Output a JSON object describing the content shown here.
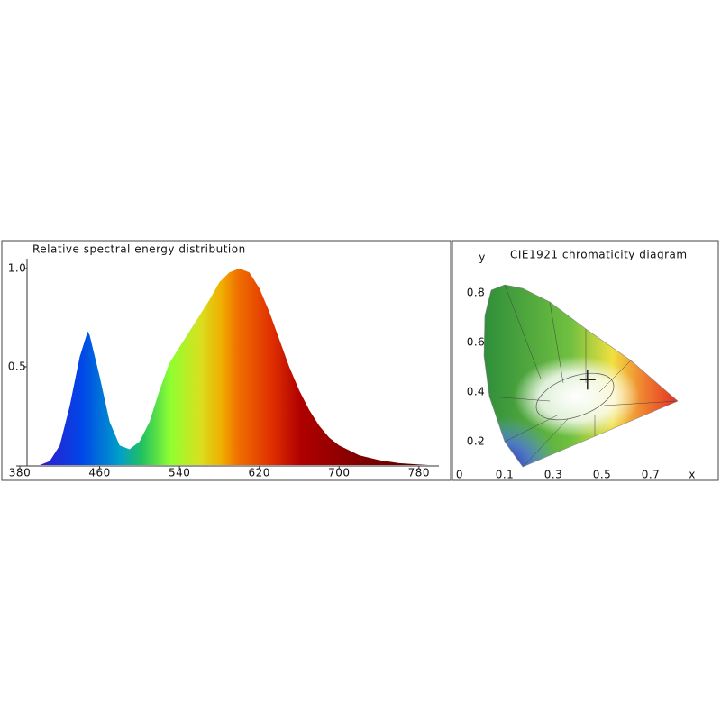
{
  "chart_data": [
    {
      "type": "area",
      "title": "Relative spectral energy distribution",
      "x": [
        400,
        410,
        420,
        430,
        440,
        448,
        450,
        460,
        470,
        480,
        490,
        500,
        510,
        520,
        530,
        540,
        550,
        560,
        570,
        580,
        590,
        600,
        610,
        620,
        630,
        640,
        650,
        660,
        670,
        680,
        690,
        700,
        720,
        740,
        760,
        780,
        790
      ],
      "values": [
        0,
        0.02,
        0.1,
        0.3,
        0.55,
        0.68,
        0.66,
        0.45,
        0.22,
        0.1,
        0.08,
        0.12,
        0.22,
        0.38,
        0.52,
        0.6,
        0.68,
        0.76,
        0.84,
        0.93,
        0.98,
        1.0,
        0.98,
        0.9,
        0.78,
        0.64,
        0.5,
        0.38,
        0.28,
        0.2,
        0.14,
        0.1,
        0.05,
        0.025,
        0.01,
        0.003,
        0
      ],
      "xlim": [
        380,
        800
      ],
      "xticks": [
        380,
        460,
        540,
        620,
        700,
        780
      ],
      "ylim": [
        0,
        1.05
      ],
      "yticks": [
        {
          "value": 1,
          "label": "1.0"
        },
        0.5
      ]
    },
    {
      "type": "scatter",
      "title": "CIE1921 chromaticity diagram",
      "x_label": "x",
      "y_label": "y",
      "origin_label": "0",
      "x": [
        0.44
      ],
      "values": [
        0.45
      ],
      "color": "#222222",
      "xlim": [
        0,
        0.9
      ],
      "xticks": [
        0.1,
        0.3,
        0.5,
        0.7
      ],
      "ylim": [
        0,
        0.9
      ],
      "yticks": [
        0.2,
        0.4,
        0.6,
        0.8
      ]
    }
  ]
}
